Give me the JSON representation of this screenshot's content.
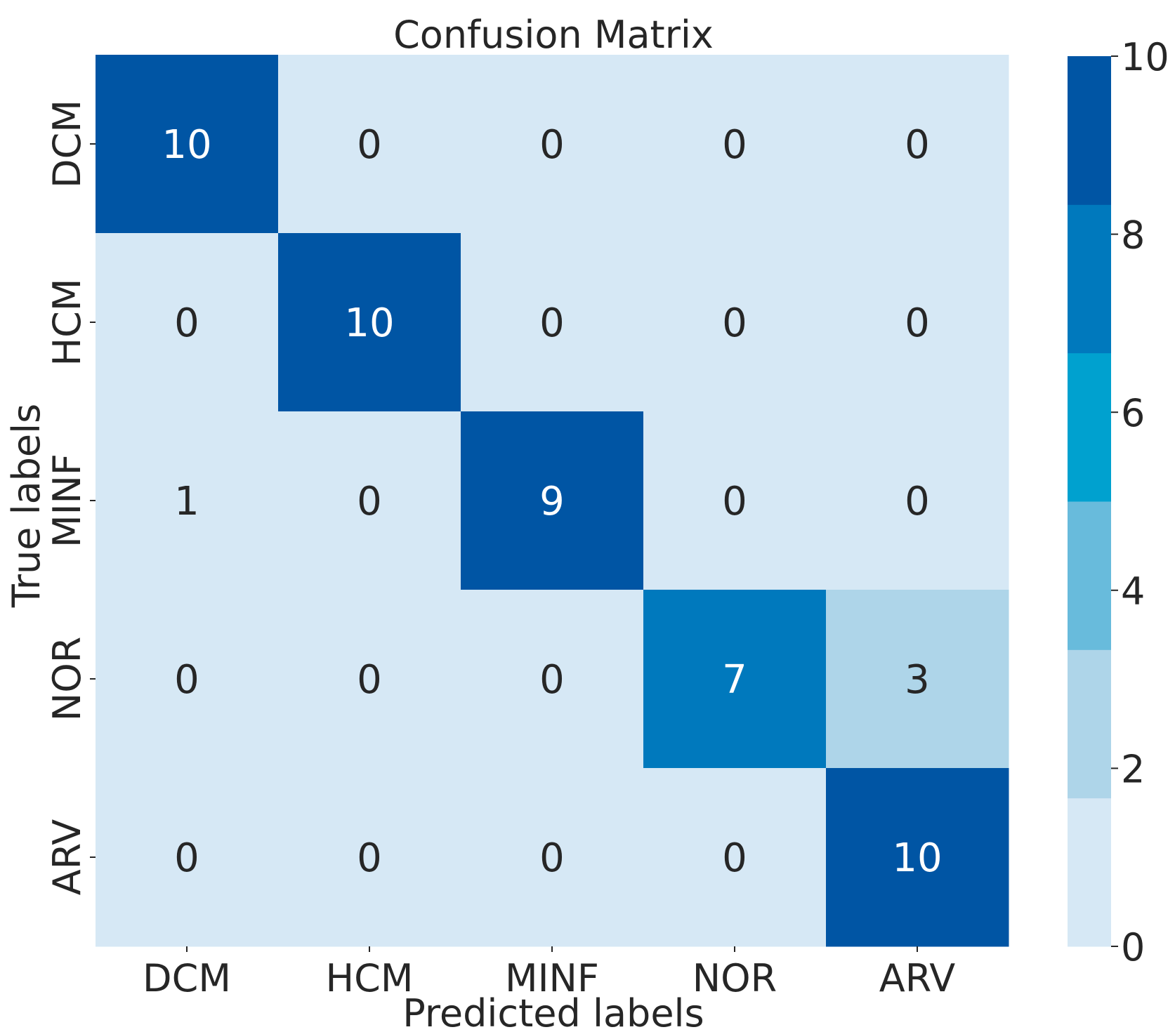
{
  "chart_data": {
    "type": "heatmap",
    "title": "Confusion Matrix",
    "xlabel": "Predicted labels",
    "ylabel": "True labels",
    "x_categories": [
      "DCM",
      "HCM",
      "MINF",
      "NOR",
      "ARV"
    ],
    "y_categories": [
      "DCM",
      "HCM",
      "MINF",
      "NOR",
      "ARV"
    ],
    "values": [
      [
        10,
        0,
        0,
        0,
        0
      ],
      [
        0,
        10,
        0,
        0,
        0
      ],
      [
        1,
        0,
        9,
        0,
        0
      ],
      [
        0,
        0,
        0,
        7,
        3
      ],
      [
        0,
        0,
        0,
        0,
        10
      ]
    ],
    "colorbar": {
      "min": 0,
      "max": 10,
      "ticks": [
        "0",
        "2",
        "4",
        "6",
        "8",
        "10"
      ],
      "colors": [
        "#d6e8f5",
        "#aed5e9",
        "#68bbdc",
        "#00a1cf",
        "#0079bd",
        "#0055a4"
      ]
    },
    "annotation_colors": {
      "light": "#ffffff",
      "dark": "#262626"
    }
  }
}
